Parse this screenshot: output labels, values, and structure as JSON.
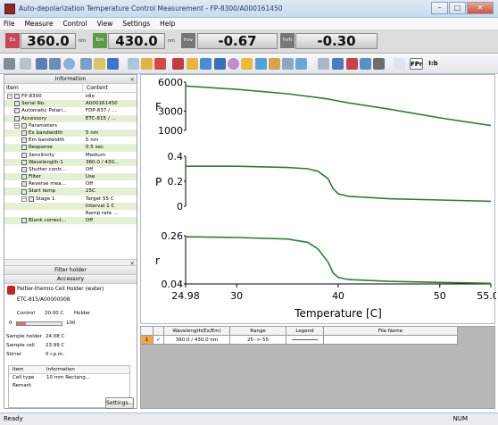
{
  "window": {
    "title": "Auto-depolarization Temperature Control Measurement - FP-8300/A000161450"
  },
  "menu": [
    "File",
    "Measure",
    "Control",
    "View",
    "Settings",
    "Help"
  ],
  "readout": {
    "ex": {
      "label": "Ex",
      "value": "360.0",
      "unit": "nm"
    },
    "em": {
      "label": "Em",
      "value": "430.0",
      "unit": "nm"
    },
    "hv": {
      "label": "hvv",
      "value": "-0.67"
    },
    "hh": {
      "label": "hvh",
      "value": "-0.30"
    }
  },
  "toolbar": {
    "fp_label": "FPr",
    "bar_label": "I:b"
  },
  "info": {
    "title": "Information",
    "col_item": "Item",
    "col_content": "Content",
    "rows": [
      {
        "item": "FP-8300",
        "content": "idle",
        "lvl": 0,
        "tog": "⊟"
      },
      {
        "item": "Serial No.",
        "content": "A000161450",
        "lvl": 1
      },
      {
        "item": "Automatic Polari...",
        "content": "FDP-837 / ...",
        "lvl": 1
      },
      {
        "item": "Accessory",
        "content": "ETC-815 / ...",
        "lvl": 1
      },
      {
        "item": "Parameters",
        "content": "",
        "lvl": 1,
        "tog": "⊟"
      },
      {
        "item": "Ex bandwidth",
        "content": "5 nm",
        "lvl": 2
      },
      {
        "item": "Em bandwidth",
        "content": "5 nm",
        "lvl": 2
      },
      {
        "item": "Response",
        "content": "0.5 sec",
        "lvl": 2
      },
      {
        "item": "Sensitivity",
        "content": "Medium",
        "lvl": 2
      },
      {
        "item": "Wavelength-1",
        "content": "360.0 / 430...",
        "lvl": 2
      },
      {
        "item": "Shutter contr...",
        "content": "Off",
        "lvl": 2
      },
      {
        "item": "Filter",
        "content": "Use",
        "lvl": 2
      },
      {
        "item": "Reverse mea...",
        "content": "Off",
        "lvl": 2
      },
      {
        "item": "Start temp",
        "content": "25C",
        "lvl": 2
      },
      {
        "item": "Stage 1",
        "content": "Target 55 C",
        "lvl": 2,
        "tog": "⊟"
      },
      {
        "item": "",
        "content": "Interval 1 C",
        "lvl": 2
      },
      {
        "item": "",
        "content": "Ramp rate ...",
        "lvl": 2
      },
      {
        "item": "Blank correct...",
        "content": "Off",
        "lvl": 2
      }
    ]
  },
  "filter_holder": {
    "title": "Filter holder"
  },
  "accessory": {
    "title": "Accessory",
    "name": "Peltier-thermo Cell Holder (water)",
    "id": "ETC-815/A00000008",
    "control": "Control",
    "control_val": "20.00 C",
    "holder": "Holder",
    "range_min": "0",
    "range_max": "100",
    "sample_holder": "Sample holder",
    "sample_holder_val": "24.08 C",
    "sample_cell": "Sample cell",
    "sample_cell_val": "23.99 C",
    "stirrer": "Stirrer",
    "stirrer_val": "0 r.p.m.",
    "sub_col_item": "Item",
    "sub_col_info": "Information",
    "cell_type": "Cell type",
    "cell_type_val": "10 mm Rectang...",
    "remark": "Remark",
    "settings_label": "Settings..."
  },
  "chart_data": [
    {
      "type": "line",
      "ylabel": "F",
      "x": [
        24.98,
        30,
        35,
        38,
        39,
        40,
        41,
        45,
        50,
        55.03
      ],
      "y": [
        5600,
        5250,
        4800,
        4400,
        4250,
        4050,
        3850,
        3200,
        2300,
        1500
      ],
      "xlim": [
        24.98,
        55.03
      ],
      "ylim": [
        1000,
        6000
      ],
      "yticks": [
        "6000",
        "3000",
        "1000"
      ],
      "color": "#2e7d32"
    },
    {
      "type": "line",
      "ylabel": "P",
      "x": [
        24.98,
        30,
        35,
        37,
        38,
        39,
        39.5,
        40,
        41,
        45,
        50,
        55.03
      ],
      "y": [
        0.32,
        0.32,
        0.31,
        0.3,
        0.28,
        0.22,
        0.14,
        0.1,
        0.08,
        0.06,
        0.05,
        0.04
      ],
      "xlim": [
        24.98,
        55.03
      ],
      "ylim": [
        0,
        0.4
      ],
      "yticks": [
        "0.4",
        "0.2",
        "0"
      ],
      "color": "#2e7d32"
    },
    {
      "type": "line",
      "ylabel": "r",
      "x": [
        24.98,
        30,
        35,
        37,
        38,
        39,
        39.5,
        40,
        41,
        45,
        50,
        55.03
      ],
      "y": [
        0.255,
        0.252,
        0.245,
        0.23,
        0.2,
        0.14,
        0.09,
        0.07,
        0.06,
        0.052,
        0.047,
        0.043
      ],
      "xlim": [
        24.98,
        55.03
      ],
      "ylim": [
        0.04,
        0.26
      ],
      "yticks": [
        "0.26",
        "0.04"
      ],
      "color": "#2e7d32"
    }
  ],
  "xaxis": {
    "label": "Temperature [C]",
    "ticks": [
      "24.98",
      "30",
      "40",
      "50",
      "55.03"
    ]
  },
  "datagrid": {
    "headers": [
      "",
      "",
      "Wavelength(Ex/Em)",
      "Range",
      "Legend",
      "File Name"
    ],
    "row": {
      "index": "1",
      "check": "✓",
      "wavelength": "360.0 / 430.0 nm",
      "range": "25 -> 55",
      "legend": "",
      "filename": ""
    }
  },
  "status": {
    "left": "Ready",
    "num": "NUM"
  }
}
